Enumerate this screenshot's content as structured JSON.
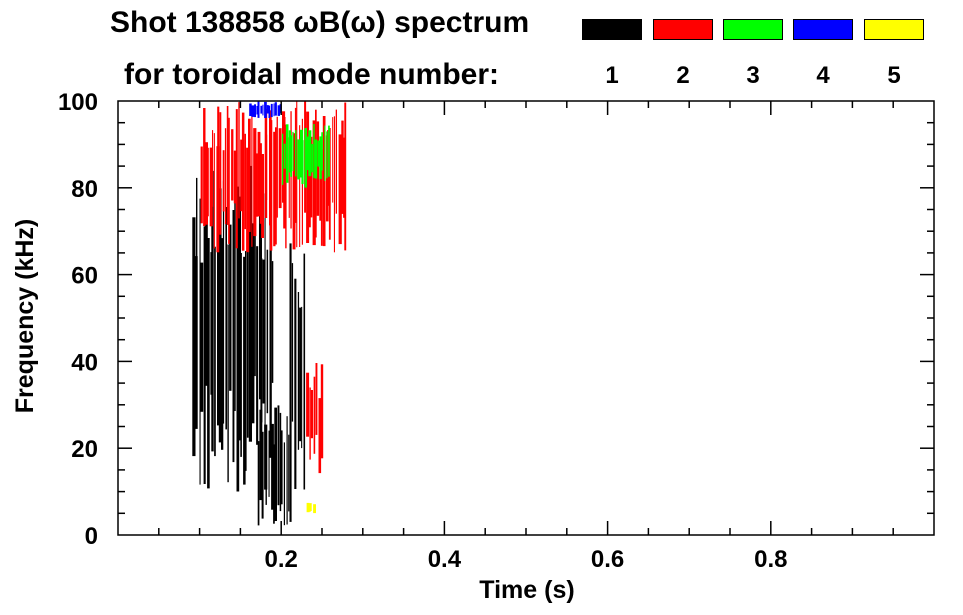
{
  "chart_data": {
    "type": "heatmap",
    "title": "Shot 138858 ωB(ω) spectrum",
    "subtitle": "for toroidal mode number:",
    "xlabel": "Time (s)",
    "ylabel": "Frequency (kHz)",
    "xlim": [
      0.0,
      1.0
    ],
    "ylim": [
      0,
      100
    ],
    "xticks": [
      0.2,
      0.4,
      0.6,
      0.8
    ],
    "xtick_labels": [
      "0.2",
      "0.4",
      "0.6",
      "0.8"
    ],
    "yticks": [
      0,
      20,
      40,
      60,
      80,
      100
    ],
    "ytick_labels": [
      "0",
      "20",
      "40",
      "60",
      "80",
      "100"
    ],
    "legend": [
      {
        "label": "1",
        "color": "#000000"
      },
      {
        "label": "2",
        "color": "#ff0000"
      },
      {
        "label": "3",
        "color": "#00ff00"
      },
      {
        "label": "4",
        "color": "#0000ff"
      },
      {
        "label": "5",
        "color": "#ffff00"
      }
    ],
    "regions": [
      {
        "mode": 1,
        "t_start": 0.09,
        "t_end": 0.19,
        "f_low": 10,
        "f_high": 88
      },
      {
        "mode": 1,
        "t_start": 0.17,
        "t_end": 0.21,
        "f_low": 1,
        "f_high": 30
      },
      {
        "mode": 1,
        "t_start": 0.21,
        "t_end": 0.23,
        "f_low": 3,
        "f_high": 70
      },
      {
        "mode": 2,
        "t_start": 0.1,
        "t_end": 0.28,
        "f_low": 65,
        "f_high": 100
      },
      {
        "mode": 2,
        "t_start": 0.23,
        "t_end": 0.25,
        "f_low": 14,
        "f_high": 40
      },
      {
        "mode": 3,
        "t_start": 0.2,
        "t_end": 0.26,
        "f_low": 80,
        "f_high": 95
      },
      {
        "mode": 4,
        "t_start": 0.16,
        "t_end": 0.2,
        "f_low": 96,
        "f_high": 100
      },
      {
        "mode": 5,
        "t_start": 0.23,
        "t_end": 0.24,
        "f_low": 5,
        "f_high": 8
      }
    ]
  }
}
